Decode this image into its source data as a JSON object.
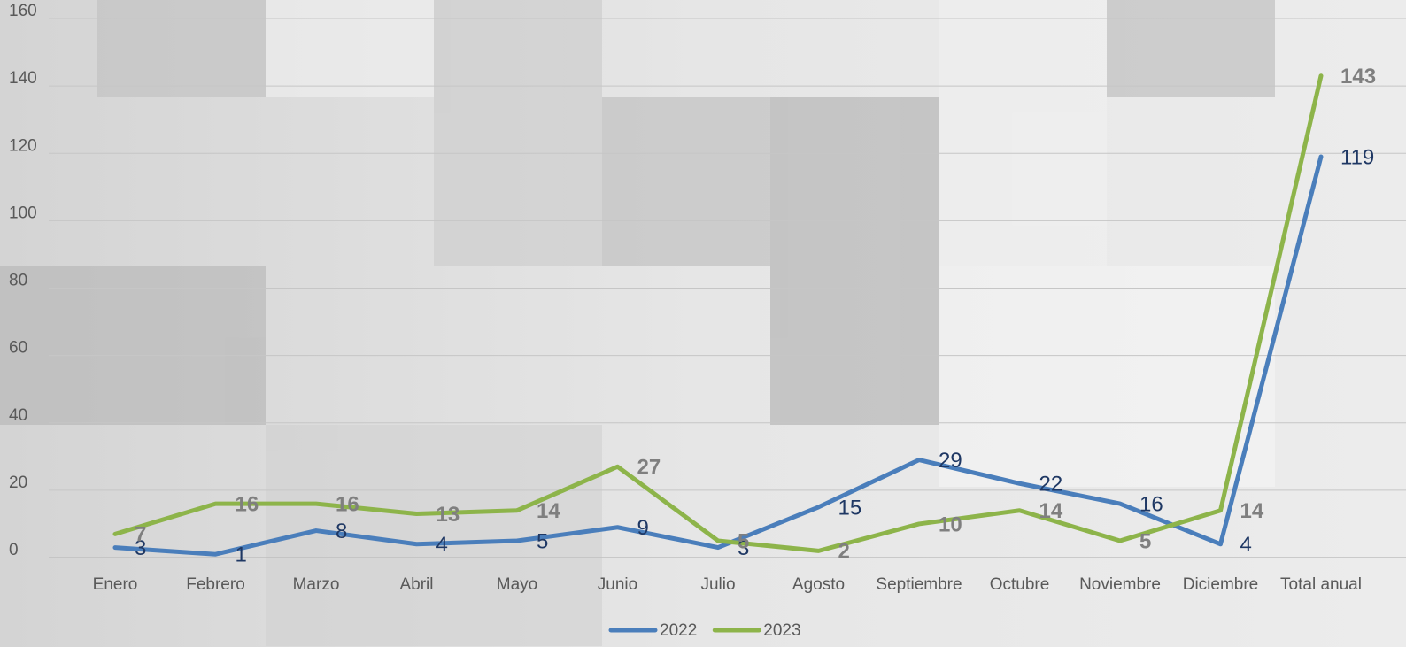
{
  "chart_data": {
    "type": "line",
    "categories": [
      "Enero",
      "Febrero",
      "Marzo",
      "Abril",
      "Mayo",
      "Junio",
      "Julio",
      "Agosto",
      "Septiembre",
      "Octubre",
      "Noviembre",
      "Diciembre",
      "Total anual"
    ],
    "series": [
      {
        "name": "2022",
        "color": "#4a7ebb",
        "values": [
          3,
          1,
          8,
          4,
          5,
          9,
          3,
          15,
          29,
          22,
          16,
          4,
          119
        ]
      },
      {
        "name": "2023",
        "color": "#8db44a",
        "values": [
          7,
          16,
          16,
          13,
          14,
          27,
          5,
          2,
          10,
          14,
          5,
          14,
          143
        ]
      }
    ],
    "ylim": [
      0,
      160
    ],
    "yticks": [
      0,
      20,
      40,
      60,
      80,
      100,
      120,
      140,
      160
    ],
    "grid": true,
    "legend": "bottom"
  }
}
